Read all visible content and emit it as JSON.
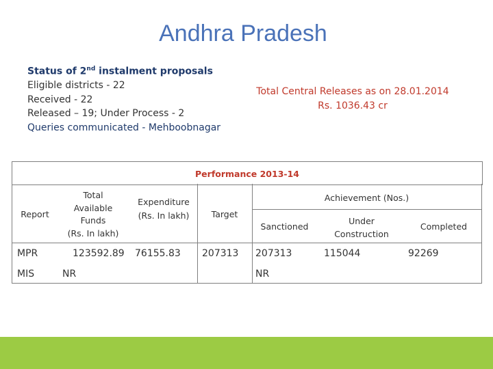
{
  "title": "Andhra Pradesh",
  "status": {
    "heading_pre": "Status of 2",
    "heading_sup": "nd",
    "heading_post": " instalment proposals",
    "eligible": "Eligible districts - 22",
    "received": "Received - 22",
    "released": "Released – 19; Under Process - 2",
    "queries": "Queries communicated -  Mehboobnagar"
  },
  "releases": {
    "line1": "Total Central Releases as on 28.01.2014",
    "line2": "Rs. 1036.43 cr"
  },
  "performance": {
    "title": "Performance   2013-14",
    "headers": {
      "report": "Report",
      "funds_1": "Total",
      "funds_2": "Available",
      "funds_3": "Funds",
      "funds_4": "(Rs. In lakh)",
      "exp_1": "Expenditure",
      "exp_2": "(Rs. In lakh)",
      "target": "Target",
      "achievement": "Achievement (Nos.)",
      "sanctioned": "Sanctioned",
      "under_1": "Under",
      "under_2": "Construction",
      "completed": "Completed"
    },
    "rows": [
      {
        "report": "MPR",
        "funds": "123592.89",
        "expenditure": "76155.83",
        "target": "207313",
        "sanctioned": "207313",
        "under": "115044",
        "completed": "92269"
      },
      {
        "report": "MIS",
        "funds": "NR",
        "expenditure": "",
        "target": "",
        "sanctioned": "NR",
        "under": "",
        "completed": ""
      }
    ]
  },
  "colors": {
    "title": "#4a72b8",
    "heading": "#1f3a6b",
    "accent_red": "#c0392b",
    "footer_bar": "#9ccb44"
  }
}
